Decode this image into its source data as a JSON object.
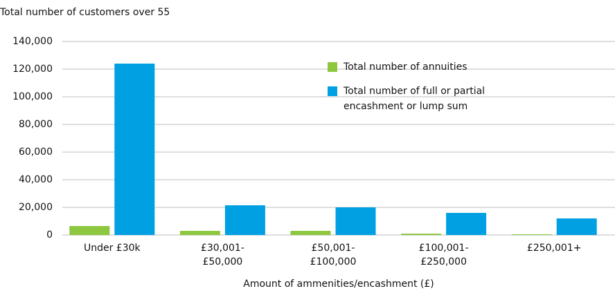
{
  "chart_data": {
    "type": "bar",
    "title": "Total number of customers over 55",
    "x_label": "Amount of ammenities/encashment (£)",
    "categories": [
      "Under £30k",
      "£30,001-\n£50,000",
      "£50,001-\n£100,000",
      "£100,001-\n£250,000",
      "£250,001+"
    ],
    "series": [
      {
        "name": "Total number of annuities",
        "color": "#8dc63f",
        "values": [
          6500,
          3000,
          3000,
          1000,
          500
        ]
      },
      {
        "name": "Total number of full or partial\nencashment or lump sum",
        "color": "#00a0e3",
        "values": [
          124000,
          21500,
          20000,
          16000,
          12000
        ]
      }
    ],
    "ylim": [
      0,
      140000
    ],
    "yticks": [
      0,
      {
        "value": 20000,
        "label": "20,000"
      },
      {
        "value": 40000,
        "label": "40,000"
      },
      {
        "value": 60000,
        "label": "60,000"
      },
      {
        "value": 80000,
        "label": "80,000"
      },
      {
        "value": 100000,
        "label": "100,000"
      },
      {
        "value": 120000,
        "label": "120,000"
      },
      {
        "value": 140000,
        "label": "140,000"
      }
    ],
    "grid": true
  }
}
